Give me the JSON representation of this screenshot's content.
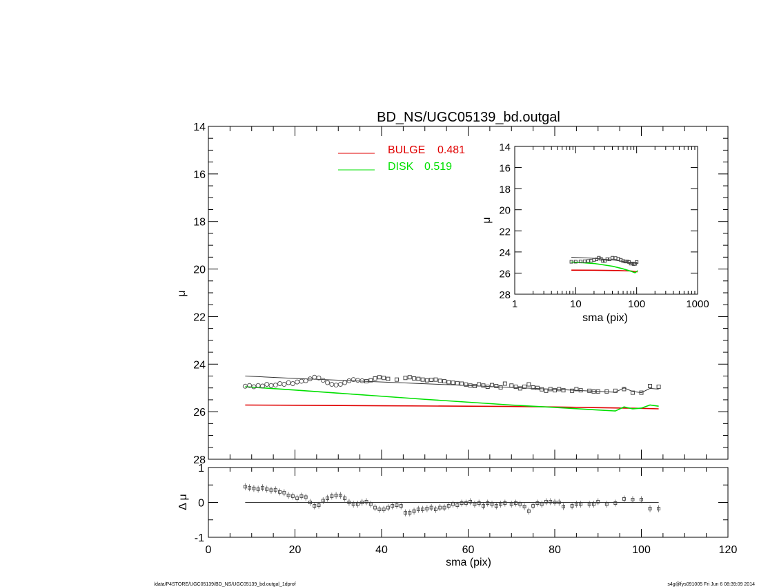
{
  "header": {
    "title": "BD_NS/UGC05139_bd.outgal"
  },
  "footer": {
    "left_path": "/data/P4STORE/UGC05139/BD_NS/UGC05139_bd.outgal_1dprof",
    "right_stamp": "s4g@fys091005  Fri Jun  6 08:39:09 2014"
  },
  "legend": {
    "bulge_label": "BULGE",
    "bulge_value": "0.481",
    "disk_label": "DISK",
    "disk_value": "0.519"
  },
  "colors": {
    "bulge": "#e00000",
    "disk": "#00e000",
    "model_total": "#333333",
    "observed": "#444444",
    "axes": "#000000"
  },
  "chart_data": [
    {
      "id": "main_profile",
      "type": "line",
      "xlabel": "",
      "ylabel": "μ",
      "xlim": [
        0,
        120
      ],
      "ylim": [
        28,
        14
      ],
      "y_inverted": true,
      "yticks": [
        14,
        16,
        18,
        20,
        22,
        24,
        26,
        28
      ],
      "ytick_labels": [
        "14",
        "16",
        "18",
        "20",
        "22",
        "24",
        "26",
        "28"
      ],
      "series": [
        {
          "name": "BULGE",
          "style": "line",
          "color": "#e00000",
          "x": [
            8.5,
            20,
            30,
            40,
            50,
            60,
            70,
            80,
            90,
            100,
            104
          ],
          "y": [
            25.72,
            25.73,
            25.74,
            25.75,
            25.76,
            25.77,
            25.78,
            25.8,
            25.83,
            25.86,
            25.88
          ]
        },
        {
          "name": "DISK",
          "style": "line",
          "color": "#00e000",
          "x": [
            8.5,
            20,
            30,
            40,
            50,
            60,
            70,
            80,
            90,
            94,
            96,
            98,
            100,
            102,
            104
          ],
          "y": [
            24.95,
            25.09,
            25.22,
            25.35,
            25.48,
            25.6,
            25.72,
            25.82,
            25.93,
            25.97,
            25.8,
            25.88,
            25.85,
            25.72,
            25.77
          ]
        },
        {
          "style": "line",
          "color": "#333333",
          "x": [
            8.5,
            20,
            40,
            60,
            80,
            94,
            96,
            98,
            100,
            102,
            104
          ],
          "y": [
            24.5,
            24.6,
            24.75,
            24.9,
            25.06,
            25.18,
            25.0,
            25.15,
            25.2,
            25.02,
            25.05
          ]
        },
        {
          "style": "markers",
          "color": "#444444",
          "x": [
            8.5,
            9.5,
            10.5,
            11.5,
            12.5,
            13.5,
            14.5,
            15.5,
            16.5,
            17.5,
            18.5,
            19.5,
            20.5,
            21.5,
            22.5,
            23.5,
            24.5,
            25.5,
            26.5,
            27.5,
            28.5,
            29.5,
            30.5,
            31.5,
            32.5,
            33.5,
            34.5,
            35.5,
            36.5,
            37.5,
            38.5,
            39.5,
            40.5,
            41.5,
            43.5,
            45.5,
            46.5,
            47.5,
            48.5,
            49.5,
            50.5,
            51.5,
            52.5,
            53.5,
            54.5,
            55.5,
            56.5,
            57.5,
            58.5,
            59.5,
            60.5,
            61.5,
            62.5,
            63.5,
            64.5,
            65.5,
            66.5,
            67.5,
            68.5,
            70,
            71,
            72,
            73,
            74,
            75,
            76,
            77,
            78,
            79,
            80,
            81,
            82,
            84,
            85,
            86,
            88,
            89,
            90,
            92,
            94,
            96,
            98,
            100,
            102,
            104
          ],
          "y": [
            24.93,
            24.9,
            24.95,
            24.9,
            24.92,
            24.85,
            24.9,
            24.88,
            24.82,
            24.85,
            24.78,
            24.82,
            24.75,
            24.72,
            24.7,
            24.62,
            24.55,
            24.58,
            24.68,
            24.78,
            24.85,
            24.88,
            24.85,
            24.78,
            24.7,
            24.65,
            24.68,
            24.7,
            24.72,
            24.68,
            24.6,
            24.55,
            24.58,
            24.62,
            24.65,
            24.58,
            24.55,
            24.6,
            24.62,
            24.65,
            24.68,
            24.66,
            24.65,
            24.7,
            24.72,
            24.76,
            24.78,
            24.8,
            24.82,
            24.86,
            24.9,
            24.92,
            24.85,
            24.9,
            24.95,
            24.88,
            24.92,
            24.98,
            24.82,
            24.9,
            24.95,
            25.02,
            24.95,
            24.85,
            24.98,
            25.0,
            25.06,
            25.12,
            25.05,
            25.1,
            25.05,
            25.1,
            25.12,
            25.05,
            25.1,
            25.12,
            25.15,
            25.15,
            25.15,
            25.12,
            25.05,
            25.2,
            25.2,
            24.92,
            24.95
          ]
        }
      ]
    },
    {
      "id": "residuals",
      "type": "scatter",
      "xlabel": "sma (pix)",
      "ylabel": "Δ μ",
      "xlim": [
        0,
        120
      ],
      "ylim": [
        -1,
        1
      ],
      "xticks": [
        0,
        20,
        40,
        60,
        80,
        100,
        120
      ],
      "xtick_labels": [
        "0",
        "20",
        "40",
        "60",
        "80",
        "100",
        "120"
      ],
      "yticks": [
        -1,
        0,
        1
      ],
      "ytick_labels": [
        "-1",
        "0",
        "1"
      ],
      "series": [
        {
          "style": "markers",
          "color": "#444444",
          "x": [
            8.5,
            9.5,
            10.5,
            11.5,
            12.5,
            13.5,
            14.5,
            15.5,
            16.5,
            17.5,
            18.5,
            19.5,
            20.5,
            21.5,
            22.5,
            23.5,
            24.5,
            25.5,
            26.5,
            27.5,
            28.5,
            29.5,
            30.5,
            31.5,
            32.5,
            33.5,
            34.5,
            35.5,
            36.5,
            37.5,
            38.5,
            39.5,
            40.5,
            41.5,
            42.5,
            43.5,
            44.5,
            45.5,
            46.5,
            47.5,
            48.5,
            49.5,
            50.5,
            51.5,
            52.5,
            53.5,
            54.5,
            55.5,
            56.5,
            57.5,
            58.5,
            59.5,
            60.5,
            61.5,
            62.5,
            63.5,
            64.5,
            65.5,
            66.5,
            67.5,
            68.5,
            70,
            71,
            72,
            73,
            74,
            75,
            76,
            77,
            78,
            79,
            80,
            81,
            82,
            84,
            85,
            86,
            88,
            89,
            90,
            92,
            94,
            96,
            98,
            100,
            102,
            104
          ],
          "y": [
            0.45,
            0.42,
            0.4,
            0.38,
            0.42,
            0.38,
            0.35,
            0.36,
            0.3,
            0.28,
            0.2,
            0.18,
            0.12,
            0.18,
            0.15,
            0.0,
            -0.1,
            -0.08,
            0.05,
            0.12,
            0.18,
            0.2,
            0.2,
            0.12,
            0.0,
            -0.05,
            -0.05,
            0.0,
            0.02,
            -0.05,
            -0.15,
            -0.2,
            -0.2,
            -0.15,
            -0.1,
            -0.08,
            -0.1,
            -0.3,
            -0.3,
            -0.25,
            -0.2,
            -0.2,
            -0.18,
            -0.15,
            -0.2,
            -0.15,
            -0.15,
            -0.1,
            -0.05,
            -0.08,
            -0.02,
            -0.02,
            0.02,
            -0.05,
            -0.02,
            -0.1,
            -0.02,
            -0.05,
            -0.1,
            -0.05,
            -0.02,
            -0.05,
            -0.02,
            -0.05,
            -0.12,
            -0.25,
            -0.1,
            -0.02,
            -0.05,
            0.02,
            0.02,
            0.0,
            0.0,
            -0.12,
            -0.1,
            -0.05,
            -0.05,
            -0.05,
            -0.05,
            0.02,
            -0.05,
            -0.02,
            0.1,
            0.08,
            0.08,
            -0.18,
            -0.18
          ]
        },
        {
          "style": "line",
          "color": "#333333",
          "x": [
            8.5,
            104
          ],
          "y": [
            0,
            0
          ]
        }
      ]
    },
    {
      "id": "inset_log",
      "type": "line",
      "xlabel": "sma (pix)",
      "ylabel": "μ",
      "xscale": "log",
      "xlim": [
        1,
        1000
      ],
      "ylim": [
        28,
        14
      ],
      "y_inverted": true,
      "xticks": [
        1,
        10,
        100,
        1000
      ],
      "xtick_labels": [
        "1",
        "10",
        "100",
        "1000"
      ],
      "yticks": [
        14,
        16,
        18,
        20,
        22,
        24,
        26,
        28
      ],
      "ytick_labels": [
        "14",
        "16",
        "18",
        "20",
        "22",
        "24",
        "26",
        "28"
      ],
      "series": [
        {
          "name": "BULGE",
          "style": "line",
          "color": "#e00000",
          "x": [
            8.5,
            20,
            50,
            80,
            104
          ],
          "y": [
            25.72,
            25.73,
            25.76,
            25.8,
            25.88
          ]
        },
        {
          "name": "DISK",
          "style": "line",
          "color": "#00e000",
          "x": [
            8.5,
            20,
            40,
            60,
            80,
            94,
            100,
            104
          ],
          "y": [
            24.95,
            25.09,
            25.35,
            25.6,
            25.82,
            25.97,
            25.85,
            25.77
          ]
        },
        {
          "style": "line",
          "color": "#333333",
          "x": [
            8.5,
            20,
            40,
            60,
            80,
            104
          ],
          "y": [
            24.5,
            24.6,
            24.75,
            24.9,
            25.06,
            25.05
          ]
        },
        {
          "style": "markers",
          "color": "#444444",
          "x": [
            8.5,
            10,
            12,
            14,
            16,
            18,
            20,
            22,
            24,
            26,
            28,
            30,
            33,
            36,
            40,
            45,
            50,
            55,
            60,
            65,
            70,
            75,
            80,
            85,
            90,
            95,
            100
          ],
          "y": [
            24.93,
            24.92,
            24.9,
            24.88,
            24.85,
            24.82,
            24.75,
            24.7,
            24.55,
            24.65,
            24.85,
            24.85,
            24.68,
            24.7,
            24.55,
            24.58,
            24.65,
            24.75,
            24.86,
            24.9,
            24.9,
            24.95,
            25.1,
            25.1,
            25.15,
            25.12,
            24.95
          ]
        }
      ]
    }
  ]
}
